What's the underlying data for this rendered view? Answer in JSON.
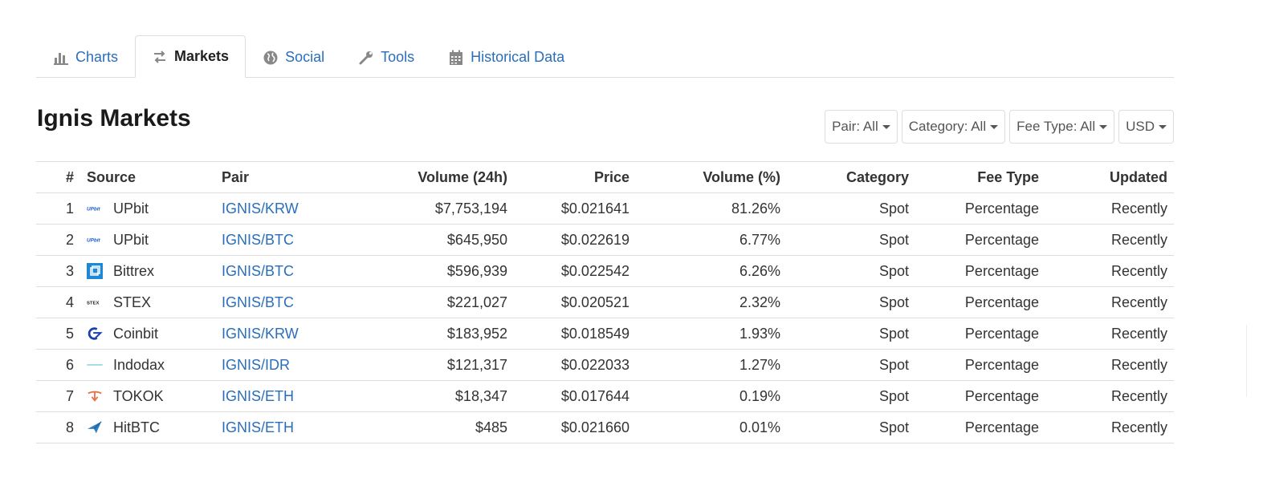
{
  "tabs": [
    {
      "label": "Charts",
      "icon": "bar-chart-icon"
    },
    {
      "label": "Markets",
      "icon": "exchange-arrows-icon",
      "active": true
    },
    {
      "label": "Social",
      "icon": "globe-icon"
    },
    {
      "label": "Tools",
      "icon": "wrench-icon"
    },
    {
      "label": "Historical Data",
      "icon": "calendar-icon"
    }
  ],
  "page_title": "Ignis Markets",
  "filters": {
    "pair": "Pair: All",
    "category": "Category: All",
    "fee_type": "Fee Type: All",
    "currency": "USD"
  },
  "table": {
    "headers": {
      "rank": "#",
      "source": "Source",
      "pair": "Pair",
      "volume": "Volume (24h)",
      "price": "Price",
      "volume_pct": "Volume (%)",
      "category": "Category",
      "fee_type": "Fee Type",
      "updated": "Updated"
    },
    "rows": [
      {
        "rank": "1",
        "source": "UPbit",
        "logo": "upbit-logo-icon",
        "pair": "IGNIS/KRW",
        "volume": "$7,753,194",
        "price": "$0.021641",
        "volume_pct": "81.26%",
        "category": "Spot",
        "fee_type": "Percentage",
        "updated": "Recently"
      },
      {
        "rank": "2",
        "source": "UPbit",
        "logo": "upbit-logo-icon",
        "pair": "IGNIS/BTC",
        "volume": "$645,950",
        "price": "$0.022619",
        "volume_pct": "6.77%",
        "category": "Spot",
        "fee_type": "Percentage",
        "updated": "Recently"
      },
      {
        "rank": "3",
        "source": "Bittrex",
        "logo": "bittrex-logo-icon",
        "pair": "IGNIS/BTC",
        "volume": "$596,939",
        "price": "$0.022542",
        "volume_pct": "6.26%",
        "category": "Spot",
        "fee_type": "Percentage",
        "updated": "Recently"
      },
      {
        "rank": "4",
        "source": "STEX",
        "logo": "stex-logo-icon",
        "pair": "IGNIS/BTC",
        "volume": "$221,027",
        "price": "$0.020521",
        "volume_pct": "2.32%",
        "category": "Spot",
        "fee_type": "Percentage",
        "updated": "Recently"
      },
      {
        "rank": "5",
        "source": "Coinbit",
        "logo": "coinbit-logo-icon",
        "pair": "IGNIS/KRW",
        "volume": "$183,952",
        "price": "$0.018549",
        "volume_pct": "1.93%",
        "category": "Spot",
        "fee_type": "Percentage",
        "updated": "Recently"
      },
      {
        "rank": "6",
        "source": "Indodax",
        "logo": "indodax-logo-icon",
        "pair": "IGNIS/IDR",
        "volume": "$121,317",
        "price": "$0.022033",
        "volume_pct": "1.27%",
        "category": "Spot",
        "fee_type": "Percentage",
        "updated": "Recently"
      },
      {
        "rank": "7",
        "source": "TOKOK",
        "logo": "tokok-logo-icon",
        "pair": "IGNIS/ETH",
        "volume": "$18,347",
        "price": "$0.017644",
        "volume_pct": "0.19%",
        "category": "Spot",
        "fee_type": "Percentage",
        "updated": "Recently"
      },
      {
        "rank": "8",
        "source": "HitBTC",
        "logo": "hitbtc-logo-icon",
        "pair": "IGNIS/ETH",
        "volume": "$485",
        "price": "$0.021660",
        "volume_pct": "0.01%",
        "category": "Spot",
        "fee_type": "Percentage",
        "updated": "Recently"
      }
    ]
  },
  "colors": {
    "link": "#2a6ebb",
    "border": "#dddddd",
    "text": "#333333"
  }
}
